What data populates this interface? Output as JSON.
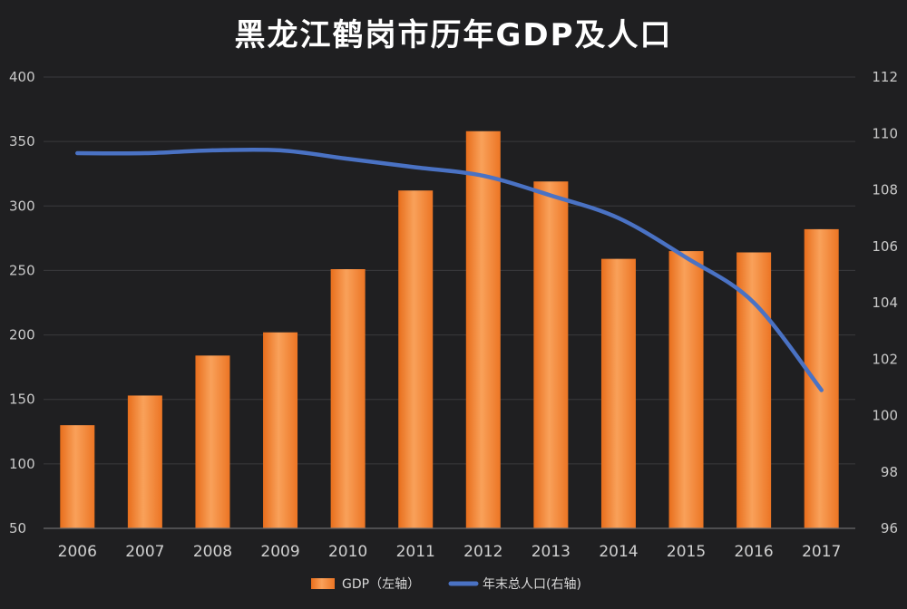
{
  "chart_data": {
    "type": "bar+line",
    "title": "黑龙江鹤岗市历年GDP及人口",
    "categories": [
      "2006",
      "2007",
      "2008",
      "2009",
      "2010",
      "2011",
      "2012",
      "2013",
      "2014",
      "2015",
      "2016",
      "2017"
    ],
    "series": [
      {
        "name": "GDP（左轴）",
        "type": "bar",
        "axis": "left",
        "color": "#f07f2a",
        "values": [
          130,
          153,
          184,
          202,
          251,
          312,
          358,
          319,
          259,
          265,
          264,
          282
        ]
      },
      {
        "name": "年末总人口(右轴)",
        "type": "line",
        "axis": "right",
        "color": "#4a72c4",
        "values": [
          109.3,
          109.3,
          109.4,
          109.4,
          109.1,
          108.8,
          108.5,
          107.8,
          107.0,
          105.6,
          104.0,
          100.9
        ]
      }
    ],
    "y_left": {
      "min": 50,
      "max": 400,
      "ticks": [
        50,
        100,
        150,
        200,
        250,
        300,
        350,
        400
      ]
    },
    "y_right": {
      "min": 96,
      "max": 112,
      "ticks": [
        96,
        98,
        100,
        102,
        104,
        106,
        108,
        110,
        112
      ]
    },
    "grid": true,
    "legend_position": "bottom"
  }
}
